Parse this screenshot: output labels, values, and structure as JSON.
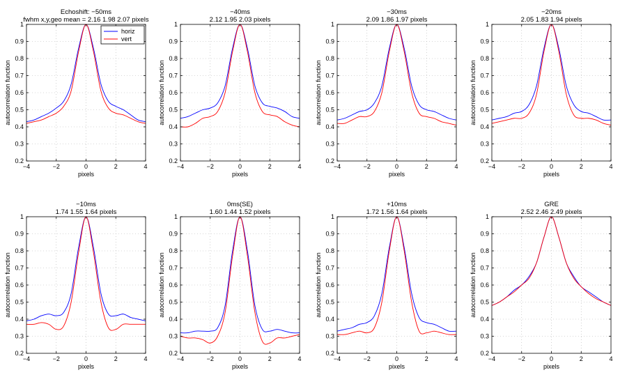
{
  "colors": {
    "horiz": "#0000ff",
    "vert": "#ff0000",
    "grid": "#b0b0b0"
  },
  "legend": {
    "horiz": "horiz",
    "vert": "vert"
  },
  "chart_data": [
    {
      "type": "line",
      "title": "Echoshift: −50ms",
      "subtitle": "fwhm x,y,geo mean = 2.16  1.98  2.07 pixels",
      "xlabel": "pixels",
      "ylabel": "autocorrelation function",
      "xlim": [
        -4,
        4
      ],
      "ylim": [
        0.2,
        1.0
      ],
      "xticks": [
        "−4",
        "−2",
        "0",
        "2",
        "4"
      ],
      "yticks": [
        "0.2",
        "0.3",
        "0.4",
        "0.5",
        "0.6",
        "0.7",
        "0.8",
        "0.9",
        "1"
      ],
      "x": [
        -4,
        -3.5,
        -3,
        -2.5,
        -2,
        -1.5,
        -1,
        -0.5,
        0,
        0.5,
        1,
        1.5,
        2,
        2.5,
        3,
        3.5,
        4
      ],
      "series": [
        {
          "name": "horiz",
          "values": [
            0.43,
            0.44,
            0.46,
            0.48,
            0.51,
            0.55,
            0.65,
            0.86,
            1.0,
            0.86,
            0.65,
            0.55,
            0.52,
            0.5,
            0.47,
            0.44,
            0.43
          ]
        },
        {
          "name": "vert",
          "values": [
            0.42,
            0.43,
            0.44,
            0.46,
            0.48,
            0.52,
            0.61,
            0.84,
            1.0,
            0.84,
            0.61,
            0.51,
            0.48,
            0.47,
            0.45,
            0.43,
            0.42
          ]
        }
      ]
    },
    {
      "type": "line",
      "title": "−40ms",
      "subtitle": "2.12  1.95  2.03 pixels",
      "xlabel": "pixels",
      "ylabel": "autocorrelation function",
      "xlim": [
        -4,
        4
      ],
      "ylim": [
        0.2,
        1.0
      ],
      "xticks": [
        "−4",
        "−2",
        "0",
        "2",
        "4"
      ],
      "yticks": [
        "0.2",
        "0.3",
        "0.4",
        "0.5",
        "0.6",
        "0.7",
        "0.8",
        "0.9",
        "1"
      ],
      "x": [
        -4,
        -3.5,
        -3,
        -2.5,
        -2,
        -1.5,
        -1,
        -0.5,
        0,
        0.5,
        1,
        1.5,
        2,
        2.5,
        3,
        3.5,
        4
      ],
      "series": [
        {
          "name": "horiz",
          "values": [
            0.45,
            0.46,
            0.48,
            0.5,
            0.51,
            0.54,
            0.64,
            0.86,
            1.0,
            0.86,
            0.64,
            0.54,
            0.52,
            0.51,
            0.49,
            0.46,
            0.45
          ]
        },
        {
          "name": "vert",
          "values": [
            0.4,
            0.4,
            0.42,
            0.45,
            0.46,
            0.49,
            0.6,
            0.84,
            1.0,
            0.84,
            0.6,
            0.49,
            0.47,
            0.46,
            0.43,
            0.41,
            0.4
          ]
        }
      ]
    },
    {
      "type": "line",
      "title": "−30ms",
      "subtitle": "2.09  1.86  1.97 pixels",
      "xlabel": "pixels",
      "ylabel": "autocorrelation function",
      "xlim": [
        -4,
        4
      ],
      "ylim": [
        0.2,
        1.0
      ],
      "xticks": [
        "−4",
        "−2",
        "0",
        "2",
        "4"
      ],
      "yticks": [
        "0.2",
        "0.3",
        "0.4",
        "0.5",
        "0.6",
        "0.7",
        "0.8",
        "0.9",
        "1"
      ],
      "x": [
        -4,
        -3.5,
        -3,
        -2.5,
        -2,
        -1.5,
        -1,
        -0.5,
        0,
        0.5,
        1,
        1.5,
        2,
        2.5,
        3,
        3.5,
        4
      ],
      "series": [
        {
          "name": "horiz",
          "values": [
            0.44,
            0.45,
            0.47,
            0.49,
            0.5,
            0.54,
            0.64,
            0.86,
            1.0,
            0.86,
            0.64,
            0.53,
            0.5,
            0.49,
            0.47,
            0.45,
            0.44
          ]
        },
        {
          "name": "vert",
          "values": [
            0.42,
            0.42,
            0.44,
            0.46,
            0.46,
            0.49,
            0.6,
            0.84,
            1.0,
            0.84,
            0.6,
            0.48,
            0.46,
            0.45,
            0.43,
            0.42,
            0.41
          ]
        }
      ]
    },
    {
      "type": "line",
      "title": "−20ms",
      "subtitle": "2.05  1.83  1.94 pixels",
      "xlabel": "pixels",
      "ylabel": "autocorrelation function",
      "xlim": [
        -4,
        4
      ],
      "ylim": [
        0.2,
        1.0
      ],
      "xticks": [
        "−4",
        "−2",
        "0",
        "2",
        "4"
      ],
      "yticks": [
        "0.2",
        "0.3",
        "0.4",
        "0.5",
        "0.6",
        "0.7",
        "0.8",
        "0.9",
        "1"
      ],
      "x": [
        -4,
        -3.5,
        -3,
        -2.5,
        -2,
        -1.5,
        -1,
        -0.5,
        0,
        0.5,
        1,
        1.5,
        2,
        2.5,
        3,
        3.5,
        4
      ],
      "series": [
        {
          "name": "horiz",
          "values": [
            0.44,
            0.45,
            0.46,
            0.48,
            0.49,
            0.53,
            0.64,
            0.86,
            1.0,
            0.86,
            0.64,
            0.53,
            0.49,
            0.48,
            0.46,
            0.44,
            0.44
          ]
        },
        {
          "name": "vert",
          "values": [
            0.42,
            0.43,
            0.44,
            0.45,
            0.45,
            0.48,
            0.59,
            0.84,
            1.0,
            0.84,
            0.59,
            0.47,
            0.45,
            0.45,
            0.44,
            0.42,
            0.41
          ]
        }
      ]
    },
    {
      "type": "line",
      "title": "−10ms",
      "subtitle": "1.74  1.55  1.64 pixels",
      "xlabel": "pixels",
      "ylabel": "autocorrelation function",
      "xlim": [
        -4,
        4
      ],
      "ylim": [
        0.2,
        1.0
      ],
      "xticks": [
        "−4",
        "−2",
        "0",
        "2",
        "4"
      ],
      "yticks": [
        "0.2",
        "0.3",
        "0.4",
        "0.5",
        "0.6",
        "0.7",
        "0.8",
        "0.9",
        "1"
      ],
      "x": [
        -4,
        -3.5,
        -3,
        -2.5,
        -2,
        -1.5,
        -1,
        -0.5,
        0,
        0.5,
        1,
        1.5,
        2,
        2.5,
        3,
        3.5,
        4
      ],
      "series": [
        {
          "name": "horiz",
          "values": [
            0.39,
            0.4,
            0.42,
            0.43,
            0.42,
            0.44,
            0.55,
            0.82,
            1.0,
            0.82,
            0.55,
            0.43,
            0.42,
            0.43,
            0.41,
            0.4,
            0.39
          ]
        },
        {
          "name": "vert",
          "values": [
            0.37,
            0.37,
            0.38,
            0.37,
            0.34,
            0.36,
            0.5,
            0.79,
            1.0,
            0.79,
            0.5,
            0.35,
            0.34,
            0.37,
            0.37,
            0.37,
            0.37
          ]
        }
      ]
    },
    {
      "type": "line",
      "title": "0ms(SE)",
      "subtitle": "1.60  1.44  1.52 pixels",
      "xlabel": "pixels",
      "ylabel": "autocorrelation function",
      "xlim": [
        -4,
        4
      ],
      "ylim": [
        0.2,
        1.0
      ],
      "xticks": [
        "−4",
        "−2",
        "0",
        "2",
        "4"
      ],
      "yticks": [
        "0.2",
        "0.3",
        "0.4",
        "0.5",
        "0.6",
        "0.7",
        "0.8",
        "0.9",
        "1"
      ],
      "x": [
        -4,
        -3.5,
        -3,
        -2.5,
        -2,
        -1.5,
        -1,
        -0.5,
        0,
        0.5,
        1,
        1.5,
        2,
        2.5,
        3,
        3.5,
        4
      ],
      "series": [
        {
          "name": "horiz",
          "values": [
            0.32,
            0.32,
            0.33,
            0.33,
            0.33,
            0.35,
            0.48,
            0.8,
            1.0,
            0.8,
            0.48,
            0.34,
            0.33,
            0.34,
            0.33,
            0.32,
            0.32
          ]
        },
        {
          "name": "vert",
          "values": [
            0.3,
            0.29,
            0.29,
            0.28,
            0.26,
            0.3,
            0.44,
            0.77,
            1.0,
            0.77,
            0.44,
            0.27,
            0.26,
            0.29,
            0.29,
            0.3,
            0.31
          ]
        }
      ]
    },
    {
      "type": "line",
      "title": "+10ms",
      "subtitle": "1.72  1.56  1.64 pixels",
      "xlabel": "pixels",
      "ylabel": "autocorrelation function",
      "xlim": [
        -4,
        4
      ],
      "ylim": [
        0.2,
        1.0
      ],
      "xticks": [
        "−4",
        "−2",
        "0",
        "2",
        "4"
      ],
      "yticks": [
        "0.2",
        "0.3",
        "0.4",
        "0.5",
        "0.6",
        "0.7",
        "0.8",
        "0.9",
        "1"
      ],
      "x": [
        -4,
        -3.5,
        -3,
        -2.5,
        -2,
        -1.5,
        -1,
        -0.5,
        0,
        0.5,
        1,
        1.5,
        2,
        2.5,
        3,
        3.5,
        4
      ],
      "series": [
        {
          "name": "horiz",
          "values": [
            0.33,
            0.34,
            0.35,
            0.37,
            0.38,
            0.42,
            0.55,
            0.82,
            1.0,
            0.82,
            0.55,
            0.41,
            0.38,
            0.37,
            0.35,
            0.33,
            0.33
          ]
        },
        {
          "name": "vert",
          "values": [
            0.31,
            0.31,
            0.32,
            0.33,
            0.32,
            0.35,
            0.5,
            0.8,
            1.0,
            0.8,
            0.5,
            0.33,
            0.32,
            0.33,
            0.32,
            0.31,
            0.31
          ]
        }
      ]
    },
    {
      "type": "line",
      "title": "GRE",
      "subtitle": "2.52  2.46  2.49 pixels",
      "xlabel": "pixels",
      "ylabel": "autocorrelation function",
      "xlim": [
        -4,
        4
      ],
      "ylim": [
        0.2,
        1.0
      ],
      "xticks": [
        "−4",
        "−2",
        "0",
        "2",
        "4"
      ],
      "yticks": [
        "0.2",
        "0.3",
        "0.4",
        "0.5",
        "0.6",
        "0.7",
        "0.8",
        "0.9",
        "1"
      ],
      "x": [
        -4,
        -3.5,
        -3,
        -2.5,
        -2,
        -1.5,
        -1,
        -0.5,
        0,
        0.5,
        1,
        1.5,
        2,
        2.5,
        3,
        3.5,
        4
      ],
      "series": [
        {
          "name": "horiz",
          "values": [
            0.48,
            0.5,
            0.53,
            0.57,
            0.6,
            0.65,
            0.73,
            0.88,
            1.0,
            0.88,
            0.73,
            0.65,
            0.59,
            0.56,
            0.53,
            0.5,
            0.48
          ]
        },
        {
          "name": "vert",
          "values": [
            0.48,
            0.5,
            0.53,
            0.56,
            0.6,
            0.64,
            0.73,
            0.88,
            1.0,
            0.88,
            0.73,
            0.64,
            0.59,
            0.55,
            0.52,
            0.5,
            0.48
          ]
        }
      ]
    }
  ]
}
